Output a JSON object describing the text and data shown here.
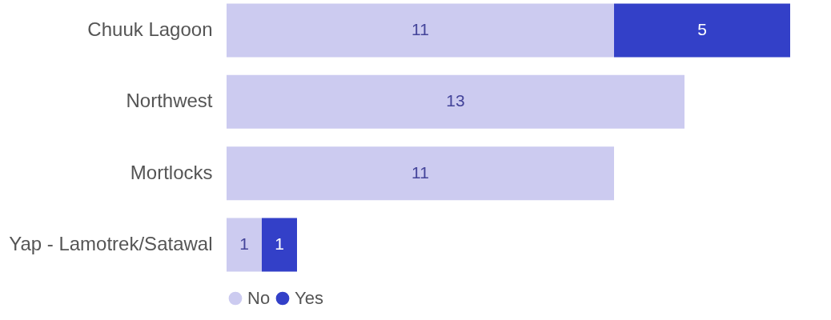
{
  "chart_data": {
    "type": "bar",
    "orientation": "horizontal",
    "stacked": true,
    "categories": [
      "Chuuk Lagoon",
      "Northwest",
      "Mortlocks",
      "Yap - Lamotrek/Satawal"
    ],
    "series": [
      {
        "name": "No",
        "color": "#cccbf0",
        "values": [
          11,
          13,
          11,
          1
        ]
      },
      {
        "name": "Yes",
        "color": "#3340c8",
        "values": [
          5,
          null,
          null,
          1
        ]
      }
    ],
    "xlim": [
      0,
      16
    ],
    "data_labels": true,
    "legend": "bottom",
    "tick_labels": "y"
  }
}
